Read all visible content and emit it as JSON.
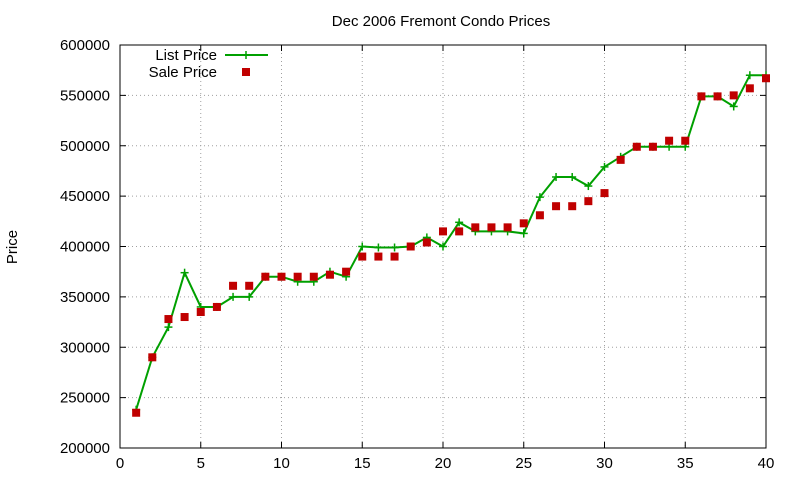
{
  "chart_data": {
    "type": "line",
    "title": "Dec 2006 Fremont Condo Prices",
    "xlabel": "",
    "ylabel": "Price",
    "xlim": [
      0,
      40
    ],
    "ylim": [
      200000,
      600000
    ],
    "x_ticks": [
      0,
      5,
      10,
      15,
      20,
      25,
      30,
      35,
      40
    ],
    "y_ticks": [
      200000,
      250000,
      300000,
      350000,
      400000,
      450000,
      500000,
      550000,
      600000
    ],
    "grid": true,
    "legend_position": "top-left",
    "x": [
      1,
      2,
      3,
      4,
      5,
      6,
      7,
      8,
      9,
      10,
      11,
      12,
      13,
      14,
      15,
      16,
      17,
      18,
      19,
      20,
      21,
      22,
      23,
      24,
      25,
      26,
      27,
      28,
      29,
      30,
      31,
      32,
      33,
      34,
      35,
      36,
      37,
      38,
      39,
      40
    ],
    "series": [
      {
        "name": "List Price",
        "style": "line-plus",
        "color": "#00a000",
        "values": [
          238000,
          290000,
          320000,
          374000,
          340000,
          340000,
          350000,
          350000,
          370000,
          370000,
          365000,
          365000,
          375000,
          370000,
          400000,
          399000,
          399000,
          400000,
          409000,
          400000,
          424000,
          415000,
          415000,
          415000,
          413000,
          449000,
          469000,
          469000,
          460000,
          479000,
          489000,
          499000,
          499000,
          499000,
          499000,
          549000,
          549000,
          539000,
          570000,
          570000
        ]
      },
      {
        "name": "Sale Price",
        "style": "square-points",
        "color": "#c00000",
        "values": [
          235000,
          290000,
          328000,
          330000,
          335000,
          340000,
          361000,
          361000,
          370000,
          370000,
          370000,
          370000,
          372000,
          375000,
          390000,
          390000,
          390000,
          400000,
          404000,
          415000,
          415000,
          419000,
          419000,
          419000,
          423000,
          431000,
          440000,
          440000,
          445000,
          453000,
          486000,
          499000,
          499000,
          505000,
          505000,
          549000,
          549000,
          550000,
          557000,
          567000
        ]
      }
    ]
  }
}
